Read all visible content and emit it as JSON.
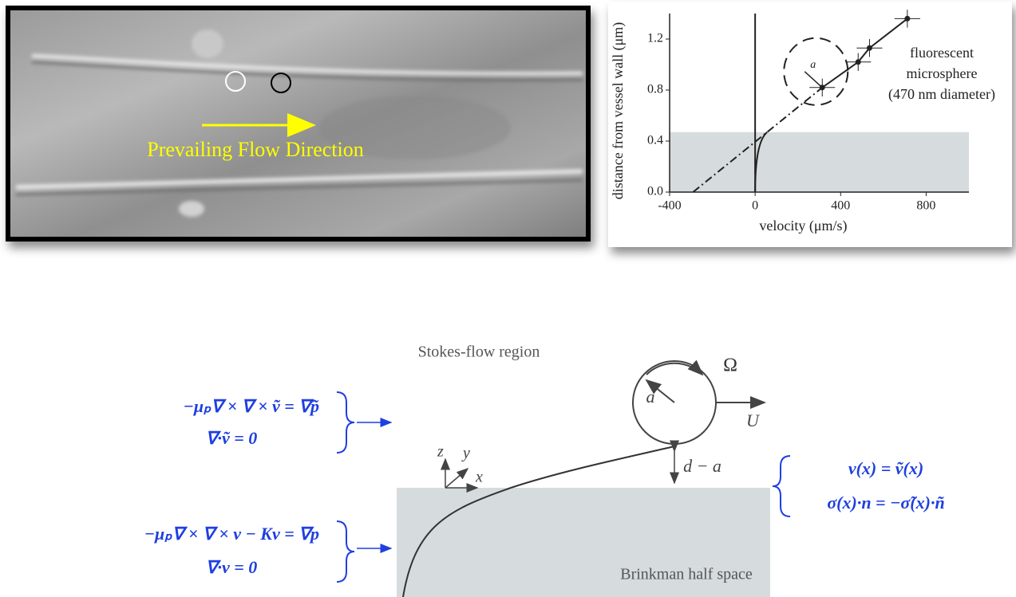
{
  "image": {
    "caption": "Prevailing Flow Direction"
  },
  "chart_data": {
    "type": "scatter",
    "x_label": "velocity (μm/s)",
    "y_label": "distance from vessel wall (μm)",
    "x": [
      314,
      482,
      535,
      712
    ],
    "values": [
      0.82,
      1.02,
      1.13,
      1.36
    ],
    "xerr": [
      60,
      60,
      60,
      60
    ],
    "yerr": [
      0.07,
      0.07,
      0.07,
      0.07
    ],
    "color": "#222222",
    "xlim": [
      -400,
      1000
    ],
    "ylim": [
      0,
      1.4
    ],
    "xticks": [
      -400,
      0,
      400,
      800
    ],
    "yticks": [
      {
        "value": 0,
        "label": "0.0"
      },
      0.4,
      0.8,
      1.2
    ],
    "band_top": 0.47,
    "band_color": "#d6dbdd",
    "annotations": [
      "fluorescent",
      "microsphere",
      "(470 nm diameter)",
      "a"
    ]
  },
  "diagram": {
    "region_top": "Stokes-flow region",
    "region_bottom": "Brinkman half space",
    "omega": "Ω",
    "radius": "a",
    "velocity": "U",
    "gap": "d − a",
    "axes": [
      "z",
      "y",
      "x"
    ],
    "stokes_equations": [
      "−μₚ∇ × ∇ × ṽ = ∇p̃",
      "∇·ṽ = 0"
    ],
    "brinkman_equations": [
      "−μₚ∇ × ∇ × v − Kv = ∇p",
      "∇·v = 0"
    ],
    "boundary_conditions": [
      "v(x) = ṽ(x)",
      "σ(x)·n = −σ̃(x)·ñ"
    ]
  }
}
